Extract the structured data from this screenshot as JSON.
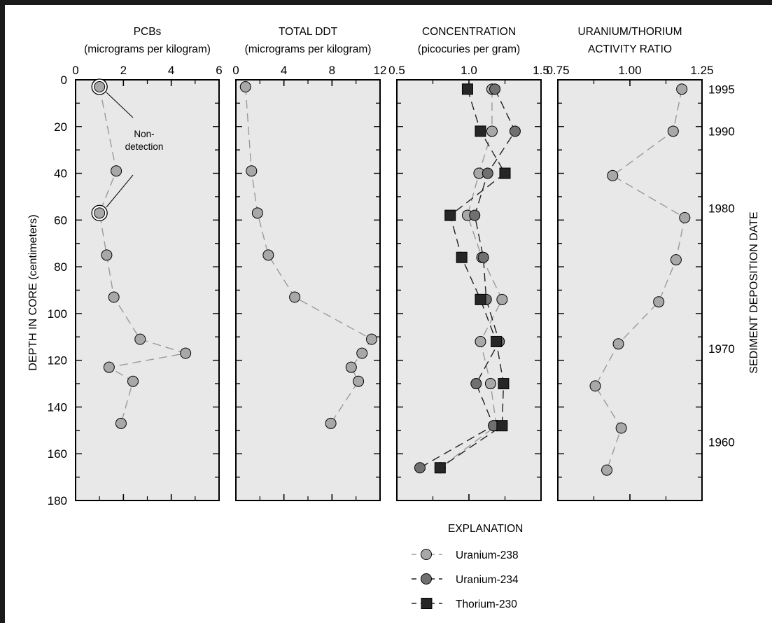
{
  "y_axis": {
    "label": "DEPTH IN CORE (centimeters)",
    "range": [
      0,
      180
    ],
    "ticks": [
      "0",
      "20",
      "40",
      "60",
      "80",
      "100",
      "120",
      "140",
      "160",
      "180"
    ]
  },
  "right_axis": {
    "label": "SEDIMENT DEPOSITION DATE",
    "dates": [
      {
        "label": "1995",
        "depth": 4
      },
      {
        "label": "1990",
        "depth": 22
      },
      {
        "label": "1980",
        "depth": 55
      },
      {
        "label": "1970",
        "depth": 115
      },
      {
        "label": "1960",
        "depth": 155
      }
    ]
  },
  "legend": {
    "title": "EXPLANATION",
    "entries": [
      {
        "label": "Uranium-238",
        "series": "U238"
      },
      {
        "label": "Uranium-234",
        "series": "U234"
      },
      {
        "label": "Thorium-230",
        "series": "Th230"
      }
    ]
  },
  "annotation": {
    "text_line1": "Non-",
    "text_line2": "detection"
  },
  "colors": {
    "panel_bg": "#e8e8e8",
    "light_marker": "#a8a8a8",
    "dark_marker": "#707070",
    "square_marker": "#262626",
    "light_line": "#9a9a9a",
    "dark_line": "#222222",
    "frame": "#1a1a1a"
  },
  "chart_data": [
    {
      "type": "scatter",
      "title_line1": "PCBs",
      "title_line2": "(micrograms per kilogram)",
      "xlim": [
        0,
        6
      ],
      "x_ticks": [
        "0",
        "2",
        "4",
        "6"
      ],
      "ylim": [
        0,
        180
      ],
      "series": [
        {
          "key": "PCB",
          "style": "light",
          "points": [
            {
              "x": 1.0,
              "y": 3,
              "nondetect": true
            },
            {
              "x": 1.7,
              "y": 39
            },
            {
              "x": 1.0,
              "y": 57,
              "nondetect": true
            },
            {
              "x": 1.3,
              "y": 75
            },
            {
              "x": 1.6,
              "y": 93
            },
            {
              "x": 2.7,
              "y": 111
            },
            {
              "x": 4.6,
              "y": 117
            },
            {
              "x": 1.4,
              "y": 123
            },
            {
              "x": 2.4,
              "y": 129
            },
            {
              "x": 1.9,
              "y": 147
            }
          ]
        }
      ]
    },
    {
      "type": "scatter",
      "title_line1": "TOTAL DDT",
      "title_line2": "(micrograms per kilogram)",
      "xlim": [
        0,
        12
      ],
      "x_ticks": [
        "0",
        "4",
        "8",
        "12"
      ],
      "ylim": [
        0,
        180
      ],
      "series": [
        {
          "key": "DDT",
          "style": "light",
          "points": [
            {
              "x": 0.8,
              "y": 3
            },
            {
              "x": 1.3,
              "y": 39
            },
            {
              "x": 1.8,
              "y": 57
            },
            {
              "x": 2.7,
              "y": 75
            },
            {
              "x": 4.9,
              "y": 93
            },
            {
              "x": 11.3,
              "y": 111
            },
            {
              "x": 10.5,
              "y": 117
            },
            {
              "x": 9.6,
              "y": 123
            },
            {
              "x": 10.2,
              "y": 129
            },
            {
              "x": 7.9,
              "y": 147
            }
          ]
        }
      ]
    },
    {
      "type": "scatter",
      "title_line1": "CONCENTRATION",
      "title_line2": "(picocuries per gram)",
      "xlim": [
        0.5,
        1.5
      ],
      "x_ticks": [
        "0.5",
        "1.0",
        "1.5"
      ],
      "ylim": [
        0,
        180
      ],
      "series": [
        {
          "key": "U238",
          "style": "light",
          "points": [
            {
              "x": 1.16,
              "y": 4
            },
            {
              "x": 1.16,
              "y": 22
            },
            {
              "x": 1.07,
              "y": 40
            },
            {
              "x": 0.99,
              "y": 58
            },
            {
              "x": 1.09,
              "y": 76
            },
            {
              "x": 1.23,
              "y": 94
            },
            {
              "x": 1.08,
              "y": 112
            },
            {
              "x": 1.15,
              "y": 130
            },
            {
              "x": 1.19,
              "y": 148
            },
            {
              "x": 0.8,
              "y": 166
            }
          ]
        },
        {
          "key": "U234",
          "style": "dark",
          "points": [
            {
              "x": 1.18,
              "y": 4
            },
            {
              "x": 1.32,
              "y": 22
            },
            {
              "x": 1.13,
              "y": 40
            },
            {
              "x": 1.04,
              "y": 58
            },
            {
              "x": 1.1,
              "y": 76
            },
            {
              "x": 1.12,
              "y": 94
            },
            {
              "x": 1.21,
              "y": 112
            },
            {
              "x": 1.05,
              "y": 130
            },
            {
              "x": 1.17,
              "y": 148
            },
            {
              "x": 0.66,
              "y": 166
            }
          ]
        },
        {
          "key": "Th230",
          "style": "square",
          "points": [
            {
              "x": 0.99,
              "y": 4
            },
            {
              "x": 1.08,
              "y": 22
            },
            {
              "x": 1.25,
              "y": 40
            },
            {
              "x": 0.87,
              "y": 58
            },
            {
              "x": 0.95,
              "y": 76
            },
            {
              "x": 1.08,
              "y": 94
            },
            {
              "x": 1.19,
              "y": 112
            },
            {
              "x": 1.24,
              "y": 130
            },
            {
              "x": 1.23,
              "y": 148
            },
            {
              "x": 0.8,
              "y": 166
            }
          ]
        }
      ]
    },
    {
      "type": "scatter",
      "title_line1": "URANIUM/THORIUM",
      "title_line2": "ACTIVITY RATIO",
      "xlim": [
        0.75,
        1.25
      ],
      "x_ticks": [
        "0.75",
        "1.00",
        "1.25"
      ],
      "ylim": [
        0,
        180
      ],
      "series": [
        {
          "key": "UTh",
          "style": "light",
          "points": [
            {
              "x": 1.18,
              "y": 4
            },
            {
              "x": 1.15,
              "y": 22
            },
            {
              "x": 0.94,
              "y": 41
            },
            {
              "x": 1.19,
              "y": 59
            },
            {
              "x": 1.16,
              "y": 77
            },
            {
              "x": 1.1,
              "y": 95
            },
            {
              "x": 0.96,
              "y": 113
            },
            {
              "x": 0.88,
              "y": 131
            },
            {
              "x": 0.97,
              "y": 149
            },
            {
              "x": 0.92,
              "y": 167
            }
          ]
        }
      ]
    }
  ]
}
